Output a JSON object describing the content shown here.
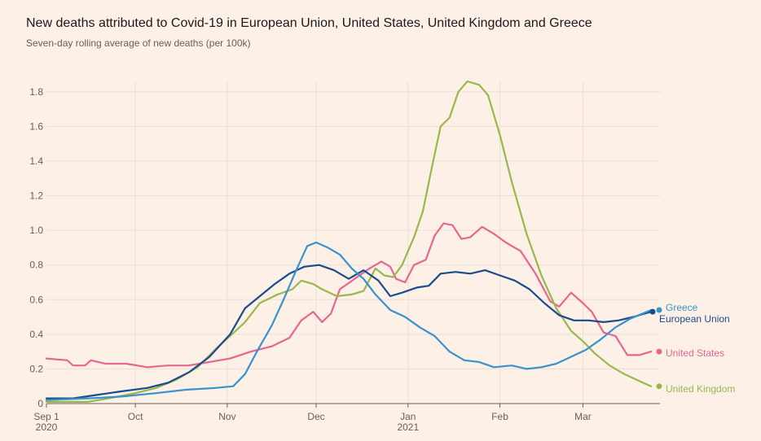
{
  "chart_data": {
    "type": "line",
    "title": "New deaths attributed to Covid-19 in European Union, United States, United Kingdom and Greece",
    "subtitle": "Seven-day rolling average of new deaths (per 100k)",
    "xlabel": "",
    "ylabel": "",
    "ylim": [
      0,
      1.86
    ],
    "xlim": [
      "2020-09-01",
      "2021-03-27"
    ],
    "yticks": [
      0,
      0.2,
      0.4,
      0.6,
      0.8,
      1.0,
      1.2,
      1.4,
      1.6,
      1.8
    ],
    "ytick_labels": [
      "0",
      "0.2",
      "0.4",
      "0.6",
      "0.8",
      "1.0",
      "1.2",
      "1.4",
      "1.6",
      "1.8"
    ],
    "xticks": [
      {
        "date": "2020-09-01",
        "label": "Sep 1",
        "sublabel": "2020"
      },
      {
        "date": "2020-10-01",
        "label": "Oct",
        "sublabel": ""
      },
      {
        "date": "2020-11-01",
        "label": "Nov",
        "sublabel": ""
      },
      {
        "date": "2020-12-01",
        "label": "Dec",
        "sublabel": ""
      },
      {
        "date": "2021-01-01",
        "label": "Jan",
        "sublabel": "2021"
      },
      {
        "date": "2021-02-01",
        "label": "Feb",
        "sublabel": ""
      },
      {
        "date": "2021-03-01",
        "label": "Mar",
        "sublabel": ""
      }
    ],
    "grid": true,
    "legend": "end-of-line labels",
    "series": [
      {
        "name": "United States",
        "color": "#e9648f",
        "points": [
          [
            "2020-09-01",
            0.26
          ],
          [
            "2020-09-08",
            0.25
          ],
          [
            "2020-09-10",
            0.22
          ],
          [
            "2020-09-14",
            0.22
          ],
          [
            "2020-09-16",
            0.25
          ],
          [
            "2020-09-21",
            0.23
          ],
          [
            "2020-09-28",
            0.23
          ],
          [
            "2020-10-05",
            0.21
          ],
          [
            "2020-10-12",
            0.22
          ],
          [
            "2020-10-19",
            0.22
          ],
          [
            "2020-10-26",
            0.24
          ],
          [
            "2020-11-02",
            0.26
          ],
          [
            "2020-11-09",
            0.3
          ],
          [
            "2020-11-16",
            0.33
          ],
          [
            "2020-11-22",
            0.38
          ],
          [
            "2020-11-26",
            0.48
          ],
          [
            "2020-11-30",
            0.53
          ],
          [
            "2020-12-03",
            0.47
          ],
          [
            "2020-12-06",
            0.52
          ],
          [
            "2020-12-09",
            0.66
          ],
          [
            "2020-12-14",
            0.72
          ],
          [
            "2020-12-19",
            0.78
          ],
          [
            "2020-12-23",
            0.82
          ],
          [
            "2020-12-26",
            0.79
          ],
          [
            "2020-12-28",
            0.72
          ],
          [
            "2020-12-31",
            0.7
          ],
          [
            "2021-01-03",
            0.8
          ],
          [
            "2021-01-07",
            0.83
          ],
          [
            "2021-01-10",
            0.97
          ],
          [
            "2021-01-13",
            1.04
          ],
          [
            "2021-01-16",
            1.03
          ],
          [
            "2021-01-19",
            0.95
          ],
          [
            "2021-01-22",
            0.96
          ],
          [
            "2021-01-26",
            1.02
          ],
          [
            "2021-01-30",
            0.98
          ],
          [
            "2021-02-03",
            0.93
          ],
          [
            "2021-02-08",
            0.88
          ],
          [
            "2021-02-13",
            0.75
          ],
          [
            "2021-02-18",
            0.59
          ],
          [
            "2021-02-21",
            0.56
          ],
          [
            "2021-02-25",
            0.64
          ],
          [
            "2021-03-01",
            0.58
          ],
          [
            "2021-03-04",
            0.53
          ],
          [
            "2021-03-08",
            0.41
          ],
          [
            "2021-03-12",
            0.39
          ],
          [
            "2021-03-16",
            0.28
          ],
          [
            "2021-03-20",
            0.28
          ],
          [
            "2021-03-24",
            0.3
          ]
        ]
      },
      {
        "name": "United Kingdom",
        "color": "#98b84e",
        "points": [
          [
            "2020-09-01",
            0.01
          ],
          [
            "2020-09-15",
            0.01
          ],
          [
            "2020-09-22",
            0.03
          ],
          [
            "2020-10-01",
            0.06
          ],
          [
            "2020-10-08",
            0.09
          ],
          [
            "2020-10-15",
            0.14
          ],
          [
            "2020-10-22",
            0.21
          ],
          [
            "2020-10-29",
            0.33
          ],
          [
            "2020-11-02",
            0.39
          ],
          [
            "2020-11-07",
            0.47
          ],
          [
            "2020-11-12",
            0.58
          ],
          [
            "2020-11-18",
            0.63
          ],
          [
            "2020-11-23",
            0.66
          ],
          [
            "2020-11-26",
            0.71
          ],
          [
            "2020-11-30",
            0.69
          ],
          [
            "2020-12-03",
            0.66
          ],
          [
            "2020-12-08",
            0.62
          ],
          [
            "2020-12-13",
            0.63
          ],
          [
            "2020-12-17",
            0.65
          ],
          [
            "2020-12-21",
            0.78
          ],
          [
            "2020-12-24",
            0.74
          ],
          [
            "2020-12-27",
            0.73
          ],
          [
            "2020-12-30",
            0.8
          ],
          [
            "2021-01-03",
            0.96
          ],
          [
            "2021-01-06",
            1.11
          ],
          [
            "2021-01-09",
            1.36
          ],
          [
            "2021-01-12",
            1.6
          ],
          [
            "2021-01-15",
            1.65
          ],
          [
            "2021-01-18",
            1.8
          ],
          [
            "2021-01-21",
            1.86
          ],
          [
            "2021-01-25",
            1.84
          ],
          [
            "2021-01-28",
            1.78
          ],
          [
            "2021-02-01",
            1.55
          ],
          [
            "2021-02-05",
            1.28
          ],
          [
            "2021-02-10",
            0.98
          ],
          [
            "2021-02-15",
            0.74
          ],
          [
            "2021-02-20",
            0.55
          ],
          [
            "2021-02-25",
            0.42
          ],
          [
            "2021-03-01",
            0.36
          ],
          [
            "2021-03-05",
            0.29
          ],
          [
            "2021-03-10",
            0.22
          ],
          [
            "2021-03-15",
            0.17
          ],
          [
            "2021-03-20",
            0.13
          ],
          [
            "2021-03-24",
            0.1
          ]
        ]
      },
      {
        "name": "European Union",
        "color": "#1a4c8c",
        "points": [
          [
            "2020-09-01",
            0.03
          ],
          [
            "2020-09-10",
            0.03
          ],
          [
            "2020-09-18",
            0.05
          ],
          [
            "2020-09-26",
            0.07
          ],
          [
            "2020-10-05",
            0.09
          ],
          [
            "2020-10-12",
            0.12
          ],
          [
            "2020-10-19",
            0.18
          ],
          [
            "2020-10-26",
            0.27
          ],
          [
            "2020-11-02",
            0.4
          ],
          [
            "2020-11-07",
            0.55
          ],
          [
            "2020-11-12",
            0.62
          ],
          [
            "2020-11-17",
            0.69
          ],
          [
            "2020-11-22",
            0.75
          ],
          [
            "2020-11-27",
            0.79
          ],
          [
            "2020-12-02",
            0.8
          ],
          [
            "2020-12-07",
            0.77
          ],
          [
            "2020-12-12",
            0.72
          ],
          [
            "2020-12-17",
            0.77
          ],
          [
            "2020-12-22",
            0.71
          ],
          [
            "2020-12-26",
            0.62
          ],
          [
            "2020-12-30",
            0.64
          ],
          [
            "2021-01-04",
            0.67
          ],
          [
            "2021-01-08",
            0.68
          ],
          [
            "2021-01-12",
            0.75
          ],
          [
            "2021-01-17",
            0.76
          ],
          [
            "2021-01-22",
            0.75
          ],
          [
            "2021-01-27",
            0.77
          ],
          [
            "2021-02-01",
            0.74
          ],
          [
            "2021-02-06",
            0.71
          ],
          [
            "2021-02-11",
            0.66
          ],
          [
            "2021-02-16",
            0.58
          ],
          [
            "2021-02-21",
            0.51
          ],
          [
            "2021-02-26",
            0.48
          ],
          [
            "2021-03-03",
            0.48
          ],
          [
            "2021-03-08",
            0.47
          ],
          [
            "2021-03-13",
            0.48
          ],
          [
            "2021-03-18",
            0.5
          ],
          [
            "2021-03-24",
            0.53
          ]
        ]
      },
      {
        "name": "Greece",
        "color": "#3a92cc",
        "points": [
          [
            "2020-09-01",
            0.02
          ],
          [
            "2020-09-15",
            0.03
          ],
          [
            "2020-09-26",
            0.04
          ],
          [
            "2020-10-08",
            0.06
          ],
          [
            "2020-10-18",
            0.08
          ],
          [
            "2020-10-28",
            0.09
          ],
          [
            "2020-11-03",
            0.1
          ],
          [
            "2020-11-07",
            0.17
          ],
          [
            "2020-11-11",
            0.3
          ],
          [
            "2020-11-16",
            0.45
          ],
          [
            "2020-11-20",
            0.6
          ],
          [
            "2020-11-24",
            0.76
          ],
          [
            "2020-11-28",
            0.91
          ],
          [
            "2020-12-01",
            0.93
          ],
          [
            "2020-12-05",
            0.9
          ],
          [
            "2020-12-09",
            0.86
          ],
          [
            "2020-12-13",
            0.78
          ],
          [
            "2020-12-17",
            0.72
          ],
          [
            "2020-12-21",
            0.63
          ],
          [
            "2020-12-26",
            0.54
          ],
          [
            "2020-12-31",
            0.5
          ],
          [
            "2021-01-05",
            0.44
          ],
          [
            "2021-01-10",
            0.39
          ],
          [
            "2021-01-15",
            0.3
          ],
          [
            "2021-01-20",
            0.25
          ],
          [
            "2021-01-25",
            0.24
          ],
          [
            "2021-01-30",
            0.21
          ],
          [
            "2021-02-05",
            0.22
          ],
          [
            "2021-02-10",
            0.2
          ],
          [
            "2021-02-15",
            0.21
          ],
          [
            "2021-02-20",
            0.23
          ],
          [
            "2021-02-25",
            0.27
          ],
          [
            "2021-03-02",
            0.31
          ],
          [
            "2021-03-07",
            0.37
          ],
          [
            "2021-03-12",
            0.44
          ],
          [
            "2021-03-17",
            0.49
          ],
          [
            "2021-03-24",
            0.54
          ]
        ]
      }
    ],
    "end_labels": [
      {
        "series": "Greece",
        "value": 0.54
      },
      {
        "series": "European Union",
        "value": 0.53
      },
      {
        "series": "United States",
        "value": 0.3
      },
      {
        "series": "United Kingdom",
        "value": 0.1
      }
    ]
  }
}
